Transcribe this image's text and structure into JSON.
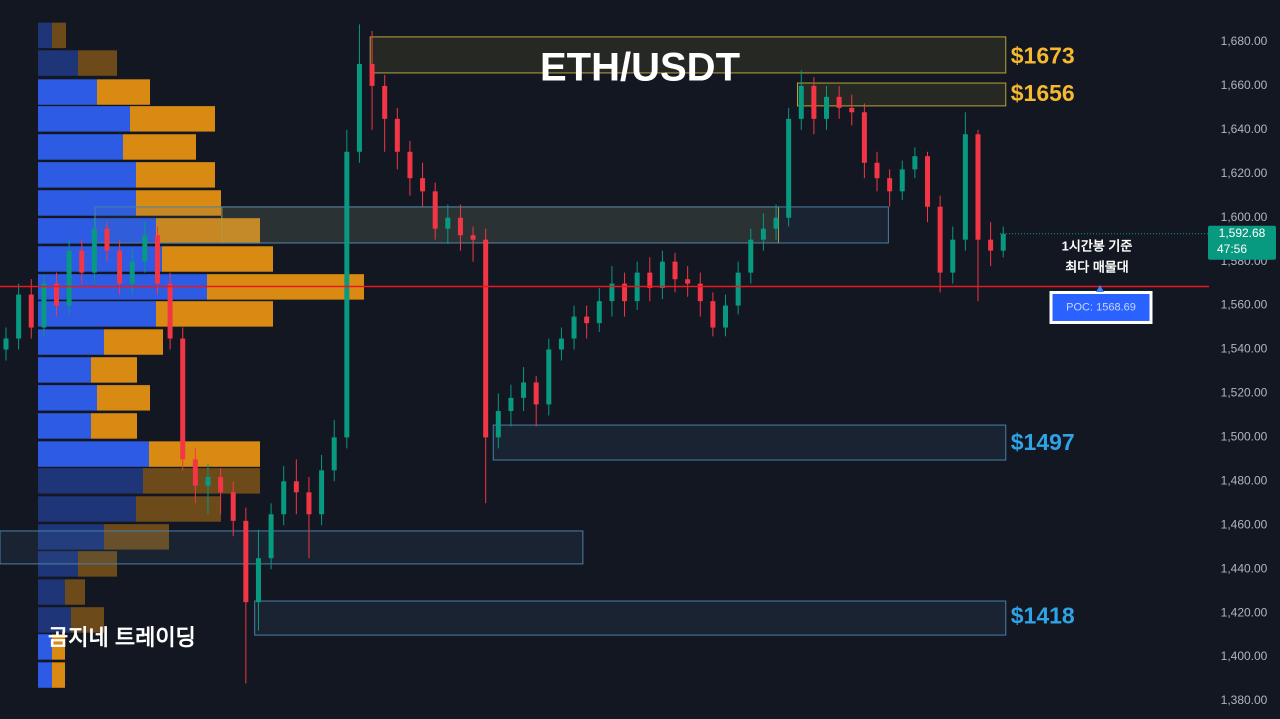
{
  "chart_data": {
    "type": "candlestick",
    "title": "ETH/USDT",
    "watermark": "곰지네 트레이딩",
    "annotation": [
      "1시간봉 기준",
      "최다 매물대"
    ],
    "ylim": [
      1371.8,
      1699.1
    ],
    "xlim": [
      -0.475,
      95.3
    ],
    "yticks": [
      {
        "value": 1380,
        "label": "1,380.00"
      },
      {
        "value": 1400,
        "label": "1,400.00"
      },
      {
        "value": 1420,
        "label": "1,420.00"
      },
      {
        "value": 1440,
        "label": "1,440.00"
      },
      {
        "value": 1460,
        "label": "1,460.00"
      },
      {
        "value": 1480,
        "label": "1,480.00"
      },
      {
        "value": 1500,
        "label": "1,500.00"
      },
      {
        "value": 1520,
        "label": "1,520.00"
      },
      {
        "value": 1540,
        "label": "1,540.00"
      },
      {
        "value": 1560,
        "label": "1,560.00"
      },
      {
        "value": 1580,
        "label": "1,580.00"
      },
      {
        "value": 1600,
        "label": "1,600.00"
      },
      {
        "value": 1620,
        "label": "1,620.00"
      },
      {
        "value": 1640,
        "label": "1,640.00"
      },
      {
        "value": 1660,
        "label": "1,660.00"
      },
      {
        "value": 1680,
        "label": "1,680.00"
      }
    ],
    "up_color": "#089981",
    "down_color": "#f23645",
    "candles": {
      "open": [
        1540,
        1545,
        1565,
        1550,
        1570,
        1560,
        1585,
        1575,
        1595,
        1585,
        1570,
        1580,
        1592,
        1570,
        1545,
        1490,
        1478,
        1482,
        1475,
        1462,
        1425,
        1445,
        1465,
        1480,
        1475,
        1465,
        1485,
        1500,
        1630,
        1670,
        1660,
        1645,
        1630,
        1618,
        1612,
        1595,
        1600,
        1592,
        1590,
        1500,
        1512,
        1518,
        1525,
        1515,
        1540,
        1545,
        1555,
        1552,
        1562,
        1570,
        1562,
        1575,
        1568,
        1580,
        1572,
        1570,
        1562,
        1550,
        1560,
        1575,
        1590,
        1595,
        1600,
        1645,
        1660,
        1645,
        1655,
        1650,
        1648,
        1625,
        1618,
        1612,
        1622,
        1628,
        1605,
        1575,
        1590,
        1638,
        1590,
        1585
      ],
      "high": [
        1550,
        1570,
        1572,
        1574,
        1575,
        1590,
        1590,
        1600,
        1598,
        1590,
        1586,
        1598,
        1596,
        1575,
        1550,
        1495,
        1488,
        1486,
        1480,
        1468,
        1458,
        1470,
        1487,
        1490,
        1482,
        1492,
        1508,
        1640,
        1688,
        1685,
        1665,
        1650,
        1635,
        1625,
        1616,
        1606,
        1606,
        1596,
        1595,
        1520,
        1524,
        1532,
        1528,
        1545,
        1550,
        1560,
        1560,
        1568,
        1578,
        1575,
        1580,
        1582,
        1585,
        1584,
        1578,
        1575,
        1566,
        1565,
        1580,
        1595,
        1602,
        1606,
        1650,
        1667,
        1664,
        1660,
        1660,
        1656,
        1652,
        1630,
        1622,
        1626,
        1632,
        1630,
        1610,
        1596,
        1648,
        1640,
        1598,
        1596
      ],
      "low": [
        1535,
        1540,
        1545,
        1546,
        1555,
        1556,
        1570,
        1570,
        1580,
        1565,
        1565,
        1575,
        1565,
        1540,
        1485,
        1470,
        1465,
        1465,
        1455,
        1388,
        1412,
        1440,
        1460,
        1465,
        1445,
        1460,
        1480,
        1495,
        1625,
        1640,
        1630,
        1622,
        1610,
        1605,
        1590,
        1588,
        1585,
        1580,
        1470,
        1495,
        1505,
        1512,
        1505,
        1510,
        1535,
        1540,
        1545,
        1548,
        1555,
        1555,
        1558,
        1562,
        1563,
        1566,
        1564,
        1555,
        1546,
        1546,
        1556,
        1570,
        1585,
        1590,
        1596,
        1640,
        1638,
        1640,
        1645,
        1642,
        1618,
        1612,
        1605,
        1608,
        1618,
        1598,
        1566,
        1570,
        1585,
        1562,
        1578,
        1582
      ],
      "close": [
        1545,
        1565,
        1550,
        1570,
        1560,
        1585,
        1575,
        1595,
        1585,
        1570,
        1580,
        1592,
        1570,
        1545,
        1490,
        1478,
        1482,
        1475,
        1462,
        1425,
        1445,
        1465,
        1480,
        1475,
        1465,
        1485,
        1500,
        1630,
        1670,
        1660,
        1645,
        1630,
        1618,
        1612,
        1595,
        1600,
        1592,
        1590,
        1500,
        1512,
        1518,
        1525,
        1515,
        1540,
        1545,
        1555,
        1552,
        1562,
        1570,
        1562,
        1575,
        1568,
        1580,
        1572,
        1570,
        1562,
        1550,
        1560,
        1575,
        1590,
        1595,
        1600,
        1645,
        1660,
        1645,
        1655,
        1650,
        1648,
        1625,
        1618,
        1612,
        1622,
        1628,
        1605,
        1575,
        1590,
        1638,
        1590,
        1585,
        1592.68
      ]
    },
    "volume_profile": {
      "buy_color": "#2d5be3",
      "sell_color": "#d98a12",
      "row_height": 12.5,
      "prices": [
        1683,
        1670.4,
        1657.2,
        1645,
        1632.2,
        1619.5,
        1606.7,
        1594,
        1581.2,
        1568.5,
        1556.2,
        1543.4,
        1530.7,
        1518,
        1505.2,
        1492.4,
        1480.2,
        1467.4,
        1454.7,
        1442.4,
        1429.6,
        1416.9,
        1404.6,
        1391.8
      ],
      "buy": [
        14,
        40,
        59,
        92,
        85,
        98,
        98,
        118,
        124,
        169,
        118,
        66,
        53,
        59,
        53,
        111,
        105,
        98,
        66,
        40,
        27,
        33,
        14,
        14
      ],
      "sell": [
        14,
        39,
        53,
        85,
        73,
        79,
        85,
        104,
        111,
        157,
        117,
        59,
        46,
        53,
        46,
        111,
        117,
        85,
        65,
        39,
        20,
        33,
        13,
        13
      ],
      "dim": [
        true,
        true,
        false,
        false,
        false,
        false,
        false,
        false,
        false,
        false,
        false,
        false,
        false,
        false,
        false,
        false,
        true,
        true,
        true,
        true,
        true,
        true,
        false,
        false
      ]
    },
    "zones": [
      {
        "value": 1673,
        "label": "$1673",
        "low": 1665.9,
        "high": 1682.3,
        "start": 28.85,
        "end": 79.2,
        "color": "#b8a33a",
        "label_color": "#f5b82e"
      },
      {
        "value": 1656,
        "label": "$1656",
        "low": 1650.9,
        "high": 1661.3,
        "start": 62.7,
        "end": 79.2,
        "color": "#b8a33a",
        "label_color": "#f5b82e"
      },
      {
        "low": 1588.5,
        "high": 1604.9,
        "start": 17.1,
        "end": 61.2,
        "color": "#b8a33a"
      },
      {
        "low": 1588.5,
        "high": 1604.9,
        "start": 7.05,
        "end": 69.9,
        "color": "#4a7fa8"
      },
      {
        "value": 1497,
        "label": "$1497",
        "low": 1489.7,
        "high": 1505.6,
        "start": 38.6,
        "end": 79.2,
        "color": "#4a7fa8",
        "label_color": "#2ea3e6"
      },
      {
        "low": 1442.4,
        "high": 1457.4,
        "start": -0.475,
        "end": 45.7,
        "color": "#4a7fa8"
      },
      {
        "value": 1418,
        "label": "$1418",
        "low": 1410,
        "high": 1425.5,
        "start": 19.7,
        "end": 79.2,
        "color": "#4a7fa8",
        "label_color": "#2ea3e6"
      }
    ],
    "poc": {
      "value": 1568.69,
      "label": "POC: 1568.69",
      "color": "#e8181f"
    },
    "last_price": {
      "value": 1592.68,
      "label": "1,592.68",
      "countdown": "47:56"
    }
  }
}
